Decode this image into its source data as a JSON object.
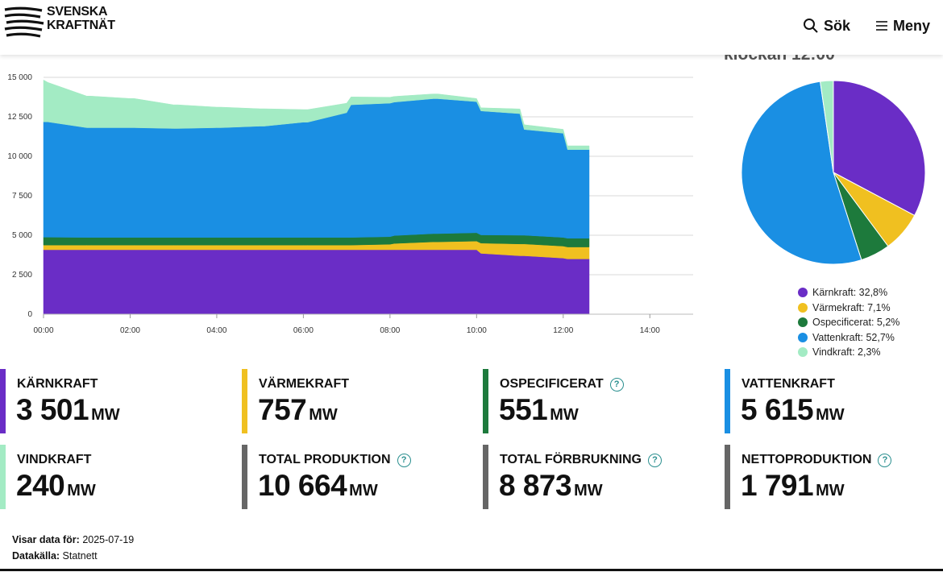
{
  "header": {
    "logo_line1": "SVENSKA",
    "logo_line2": "KRAFTNÄT",
    "search_label": "Sök",
    "menu_label": "Meny",
    "search_icon": "search-icon",
    "menu_icon": "hamburger-icon"
  },
  "chart_data": [
    {
      "type": "area",
      "stacked": true,
      "xlabel": "",
      "ylabel": "",
      "x_unit": "hour",
      "xlim": [
        0,
        15
      ],
      "ylim": [
        0,
        15000
      ],
      "grid": true,
      "x_ticks": [
        "00:00",
        "02:00",
        "04:00",
        "06:00",
        "08:00",
        "10:00",
        "12:00",
        "14:00"
      ],
      "y_ticks": [
        "0",
        "2 500",
        "5 000",
        "7 500",
        "10 000",
        "12 500",
        "15 000"
      ],
      "x": [
        0,
        0.1,
        1,
        1.1,
        2,
        2.1,
        3,
        3.1,
        4,
        4.1,
        5,
        5.1,
        6,
        6.1,
        7,
        7.1,
        8,
        8.1,
        9,
        9.1,
        10,
        10.1,
        11,
        11.1,
        12,
        12.1,
        12.6
      ],
      "series": [
        {
          "name": "Kärnkraft",
          "color": "#6a2dc6",
          "values": [
            4080,
            4080,
            4080,
            4080,
            4080,
            4080,
            4080,
            4080,
            4080,
            4080,
            4080,
            4080,
            4080,
            4080,
            4080,
            4080,
            4080,
            4080,
            4080,
            4080,
            4080,
            3850,
            3700,
            3700,
            3550,
            3500,
            3500
          ]
        },
        {
          "name": "Värmekraft",
          "color": "#f0c020",
          "values": [
            300,
            300,
            300,
            300,
            300,
            300,
            300,
            300,
            300,
            300,
            300,
            300,
            300,
            300,
            300,
            300,
            350,
            400,
            500,
            500,
            550,
            650,
            750,
            750,
            760,
            757,
            757
          ]
        },
        {
          "name": "Ospecificerat",
          "color": "#1d7a3c",
          "values": [
            500,
            500,
            480,
            480,
            480,
            480,
            480,
            480,
            480,
            480,
            480,
            480,
            480,
            480,
            480,
            480,
            480,
            500,
            520,
            520,
            530,
            520,
            550,
            550,
            550,
            551,
            551
          ]
        },
        {
          "name": "Vattenkraft",
          "color": "#1a8fe3",
          "values": [
            7300,
            7300,
            6950,
            6950,
            6950,
            6950,
            6900,
            6900,
            6950,
            6950,
            7050,
            7050,
            7300,
            7300,
            7900,
            8400,
            8450,
            8450,
            8550,
            8550,
            8300,
            7850,
            7700,
            6700,
            6600,
            5615,
            5615
          ]
        },
        {
          "name": "Vindkraft",
          "color": "#a3ebc4",
          "values": [
            2650,
            2500,
            2000,
            2000,
            1850,
            1850,
            1500,
            1500,
            1300,
            1300,
            1100,
            1100,
            800,
            800,
            600,
            500,
            380,
            360,
            300,
            300,
            200,
            200,
            300,
            300,
            250,
            240,
            240
          ]
        }
      ]
    },
    {
      "type": "pie",
      "title_partial": "klockan 12:00",
      "slices": [
        {
          "name": "Kärnkraft",
          "value": 32.8,
          "color": "#6a2dc6"
        },
        {
          "name": "Värmekraft",
          "value": 7.1,
          "color": "#f0c020"
        },
        {
          "name": "Ospecificerat",
          "value": 5.2,
          "color": "#1d7a3c"
        },
        {
          "name": "Vattenkraft",
          "value": 52.7,
          "color": "#1a8fe3"
        },
        {
          "name": "Vindkraft",
          "value": 2.3,
          "color": "#a3ebc4"
        }
      ],
      "legend": [
        "Kärnkraft: 32,8%",
        "Värmekraft: 7,1%",
        "Ospecificerat: 5,2%",
        "Vattenkraft: 52,7%",
        "Vindkraft: 2,3%"
      ]
    }
  ],
  "stats": [
    {
      "label": "KÄRNKRAFT",
      "value": "3 501",
      "unit": "MW",
      "color": "#6a2dc6",
      "help": false
    },
    {
      "label": "VÄRMEKRAFT",
      "value": "757",
      "unit": "MW",
      "color": "#f0c020",
      "help": false
    },
    {
      "label": "OSPECIFICERAT",
      "value": "551",
      "unit": "MW",
      "color": "#1d7a3c",
      "help": true
    },
    {
      "label": "VATTENKRAFT",
      "value": "5 615",
      "unit": "MW",
      "color": "#1a8fe3",
      "help": false
    },
    {
      "label": "VINDKRAFT",
      "value": "240",
      "unit": "MW",
      "color": "#a3ebc4",
      "help": false
    },
    {
      "label": "TOTAL PRODUKTION",
      "value": "10 664",
      "unit": "MW",
      "color": "#666666",
      "help": true
    },
    {
      "label": "TOTAL FÖRBRUKNING",
      "value": "8 873",
      "unit": "MW",
      "color": "#666666",
      "help": true
    },
    {
      "label": "NETTOPRODUKTION",
      "value": "1 791",
      "unit": "MW",
      "color": "#666666",
      "help": true
    }
  ],
  "help_glyph": "?",
  "footer": {
    "date_label": "Visar data för:",
    "date_value": "2025-07-19",
    "source_label": "Datakälla:",
    "source_value": "Statnett"
  }
}
